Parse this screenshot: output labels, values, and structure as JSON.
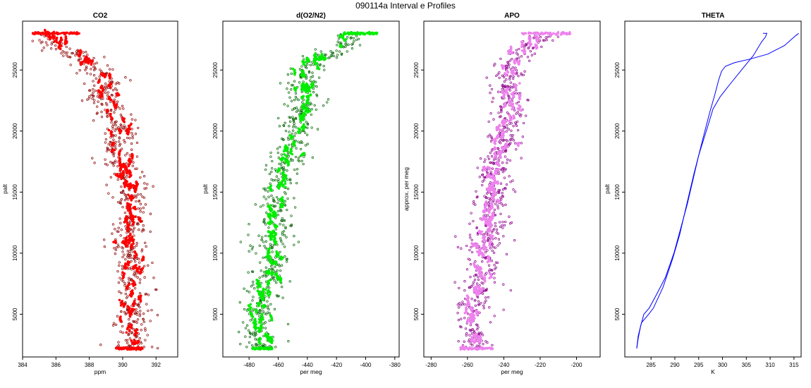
{
  "figure": {
    "title": "090114a   Interval e Profiles"
  },
  "chart_data": [
    {
      "type": "scatter",
      "title": "CO2",
      "xlabel": "ppm",
      "ylabel": "palt",
      "xlim": [
        384,
        393.3
      ],
      "ylim": [
        1500,
        29000
      ],
      "xticks": [
        384,
        386,
        388,
        390,
        392
      ],
      "yticks": [
        5000,
        10000,
        15000,
        20000,
        25000
      ],
      "color": "#ff0000",
      "profile": {
        "y": [
          2200,
          3000,
          4000,
          5000,
          6000,
          7000,
          8000,
          9000,
          10000,
          11000,
          12000,
          13000,
          14000,
          15000,
          16000,
          17000,
          18000,
          19000,
          20000,
          21000,
          22000,
          23000,
          24000,
          25000,
          26000,
          27000,
          28000
        ],
        "x": [
          390.6,
          390.6,
          390.5,
          390.4,
          390.6,
          390.7,
          390.4,
          390.6,
          390.3,
          390.2,
          390.4,
          390.5,
          390.4,
          390.5,
          390.4,
          390.0,
          389.7,
          389.8,
          390.0,
          389.5,
          389.0,
          388.8,
          389.0,
          388.6,
          387.4,
          386.0,
          385.6
        ]
      },
      "scatter_sd": 0.55
    },
    {
      "type": "scatter",
      "title": "d(O2/N2)",
      "xlabel": "per meg",
      "ylabel": "palt",
      "xlim": [
        -498,
        -377
      ],
      "ylim": [
        1500,
        29000
      ],
      "xticks": [
        -480,
        -460,
        -440,
        -420,
        -400,
        -380
      ],
      "yticks": [
        5000,
        10000,
        15000,
        20000,
        25000
      ],
      "color": "#00ee00",
      "profile": {
        "y": [
          2200,
          3000,
          4000,
          5000,
          6000,
          7000,
          8000,
          9000,
          10000,
          11000,
          12000,
          13000,
          14000,
          15000,
          16000,
          17000,
          18000,
          19000,
          20000,
          21000,
          22000,
          23000,
          24000,
          25000,
          26000,
          27000,
          28000
        ],
        "x": [
          -474,
          -472,
          -474,
          -472,
          -473,
          -471,
          -466,
          -463,
          -465,
          -463,
          -462,
          -460,
          -461,
          -460,
          -458,
          -456,
          -452,
          -450,
          -449,
          -446,
          -440,
          -441,
          -444,
          -442,
          -430,
          -416,
          -408
        ]
      },
      "scatter_sd": 6
    },
    {
      "type": "scatter",
      "title": "APO",
      "xlabel": "per meg",
      "ylabel": "approx. per meg",
      "xlim": [
        -284,
        -187
      ],
      "ylim": [
        1500,
        29000
      ],
      "xticks": [
        -280,
        -260,
        -240,
        -220,
        -200
      ],
      "yticks": [
        5000,
        10000,
        15000,
        20000,
        25000
      ],
      "color": "#ee82ee",
      "profile": {
        "y": [
          2200,
          3000,
          4000,
          5000,
          6000,
          7000,
          8000,
          9000,
          10000,
          11000,
          12000,
          13000,
          14000,
          15000,
          16000,
          17000,
          18000,
          19000,
          20000,
          21000,
          22000,
          23000,
          24000,
          25000,
          26000,
          27000,
          28000
        ],
        "x": [
          -256,
          -255,
          -258,
          -257,
          -256,
          -254,
          -252,
          -250,
          -251,
          -250,
          -249,
          -247,
          -248,
          -246,
          -247,
          -246,
          -244,
          -240,
          -238,
          -238,
          -236,
          -237,
          -238,
          -236,
          -233,
          -225,
          -218
        ]
      },
      "scatter_sd": 5
    },
    {
      "type": "line",
      "title": "THETA",
      "xlabel": "K",
      "ylabel": "palt",
      "xlim": [
        279.5,
        316.5
      ],
      "ylim": [
        1500,
        29000
      ],
      "xticks": [
        285,
        290,
        295,
        300,
        305,
        310,
        315
      ],
      "yticks": [
        5000,
        10000,
        15000,
        20000,
        25000
      ],
      "color": "#0000ff",
      "series": [
        {
          "x": [
            282.0,
            282.3,
            282.8,
            283.5,
            284.6,
            286.0,
            288.0,
            289.8,
            291.2,
            292.6,
            293.8,
            295.0,
            296.3,
            297.3,
            298.4,
            299.2,
            299.8,
            300.6,
            302.5,
            305.8,
            309.5,
            313.0,
            315.3,
            316.0
          ],
          "y": [
            2200,
            3000,
            4000,
            5000,
            5500,
            6500,
            8000,
            10000,
            12000,
            14000,
            16000,
            18000,
            20000,
            21500,
            23000,
            24200,
            24900,
            25300,
            25600,
            25900,
            26300,
            27000,
            27800,
            28000
          ]
        },
        {
          "x": [
            282.0,
            282.3,
            283.0,
            284.5,
            285.5,
            287.5,
            289.5,
            291.0,
            292.5,
            294.0,
            295.0,
            296.2,
            297.0,
            298.0,
            299.5,
            301.5,
            304.0,
            306.5,
            308.2,
            309.0,
            309.3,
            308.5
          ],
          "y": [
            2200,
            3200,
            4300,
            5000,
            5500,
            7200,
            9500,
            11500,
            14000,
            16500,
            18000,
            19500,
            20500,
            21800,
            22800,
            23800,
            25000,
            26200,
            27300,
            27700,
            28000,
            28000
          ]
        }
      ]
    }
  ]
}
